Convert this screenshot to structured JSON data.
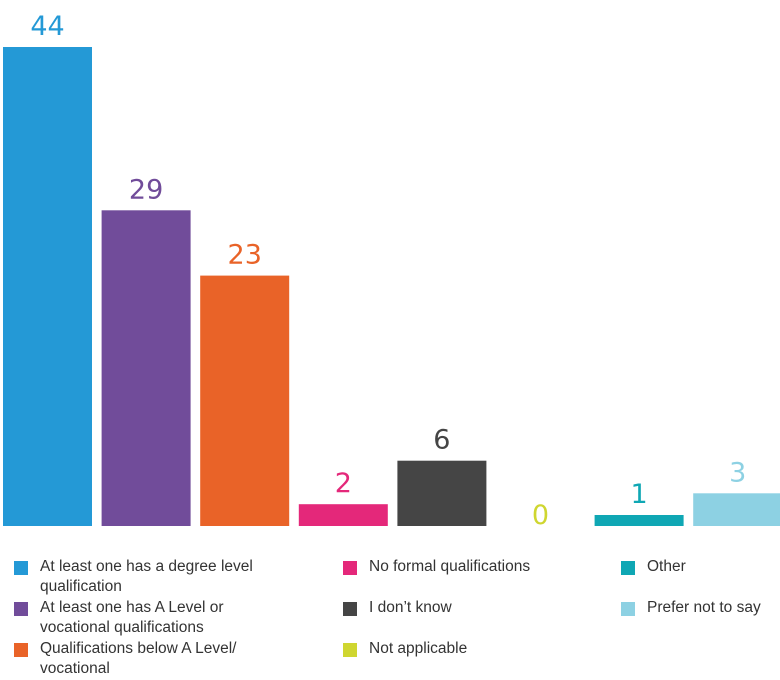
{
  "chart_data": {
    "type": "bar",
    "categories": [
      "At least one has a degree level qualification",
      "At least one has A Level or vocational qualifications",
      "Qualifications below A Level/ vocational",
      "No formal qualifications",
      "I don’t know",
      "Not applicable",
      "Other",
      "Prefer not to say"
    ],
    "values": [
      44,
      29,
      23,
      2,
      6,
      0,
      1,
      3
    ],
    "value_labels": [
      "44",
      "29",
      "23",
      "2",
      "6",
      "0",
      "1",
      "3"
    ],
    "colors": [
      "#2499d6",
      "#714c9a",
      "#e96328",
      "#e4287a",
      "#454545",
      "#cfd630",
      "#0fa7b4",
      "#8dd1e3"
    ],
    "ylim": [
      0,
      44
    ],
    "title": "",
    "xlabel": "",
    "ylabel": "",
    "grid": false,
    "legend_position": "bottom"
  },
  "legend": {
    "items": [
      {
        "label_line1": "At least one has a degree level",
        "label_line2": "qualification",
        "color": "#2499d6"
      },
      {
        "label_line1": "At least one has A Level or",
        "label_line2": "vocational qualifications",
        "color": "#714c9a"
      },
      {
        "label_line1": "Qualifications below A Level/",
        "label_line2": "vocational",
        "color": "#e96328"
      },
      {
        "label_line1": "No formal qualifications",
        "label_line2": "",
        "color": "#e4287a"
      },
      {
        "label_line1": "I don’t know",
        "label_line2": "",
        "color": "#454545"
      },
      {
        "label_line1": "Not applicable",
        "label_line2": "",
        "color": "#cfd630"
      },
      {
        "label_line1": "Other",
        "label_line2": "",
        "color": "#0fa7b4"
      },
      {
        "label_line1": "Prefer not to say",
        "label_line2": "",
        "color": "#8dd1e3"
      }
    ]
  }
}
